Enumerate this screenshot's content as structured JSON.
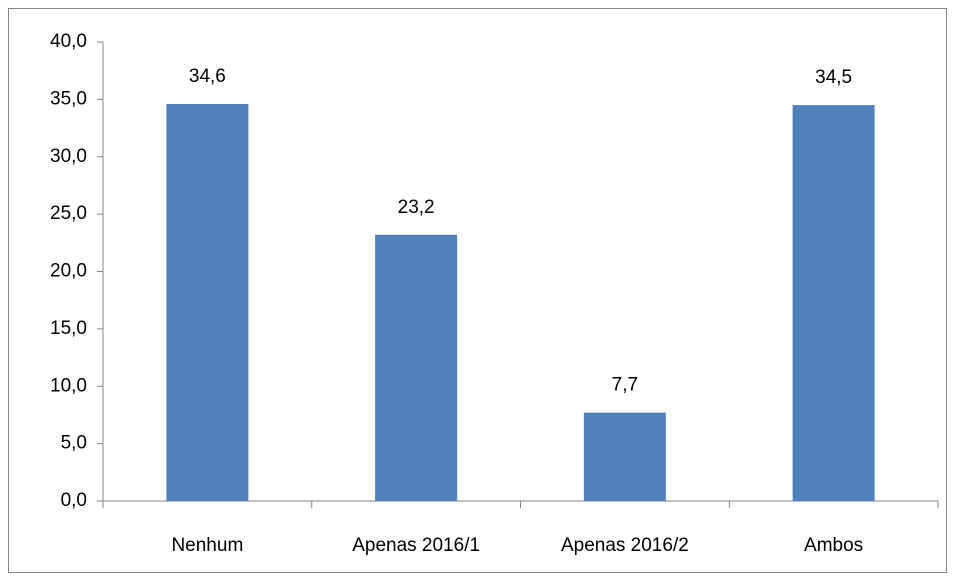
{
  "chart_data": {
    "type": "bar",
    "categories": [
      "Nenhum",
      "Apenas 2016/1",
      "Apenas 2016/2",
      "Ambos"
    ],
    "values": [
      34.6,
      23.2,
      7.7,
      34.5
    ],
    "value_labels": [
      "34,6",
      "23,2",
      "7,7",
      "34,5"
    ],
    "color": "#4f81bd",
    "ylim": [
      0,
      40
    ],
    "yticks": [
      {
        "value": 0,
        "label": "0,0"
      },
      {
        "value": 5,
        "label": "5,0"
      },
      {
        "value": 10,
        "label": "10,0"
      },
      {
        "value": 15,
        "label": "15,0"
      },
      {
        "value": 20,
        "label": "20,0"
      },
      {
        "value": 25,
        "label": "25,0"
      },
      {
        "value": 30,
        "label": "30,0"
      },
      {
        "value": 35,
        "label": "35,0"
      },
      {
        "value": 40,
        "label": "40,0"
      }
    ],
    "grid": false
  }
}
